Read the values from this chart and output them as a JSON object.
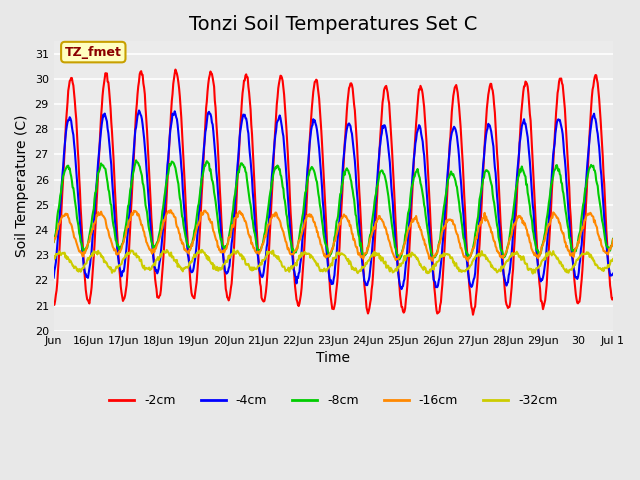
{
  "title": "Tonzi Soil Temperatures Set C",
  "xlabel": "Time",
  "ylabel": "Soil Temperature (C)",
  "ylim": [
    20.0,
    31.5
  ],
  "yticks": [
    20.0,
    21.0,
    22.0,
    23.0,
    24.0,
    25.0,
    26.0,
    27.0,
    28.0,
    29.0,
    30.0,
    31.0
  ],
  "bg_color": "#e8e8e8",
  "plot_bg": "#ebebeb",
  "annotation_text": "TZ_fmet",
  "annotation_bg": "#ffffc0",
  "annotation_border": "#c8a000",
  "series_names": [
    "-2cm",
    "-4cm",
    "-8cm",
    "-16cm",
    "-32cm"
  ],
  "series_colors": [
    "#ff0000",
    "#0000ff",
    "#00cc00",
    "#ff8800",
    "#cccc00"
  ],
  "series_lw": [
    1.5,
    1.5,
    1.5,
    1.5,
    1.5
  ],
  "series_amp": [
    4.5,
    3.2,
    1.7,
    0.8,
    0.35
  ],
  "series_phase": [
    0.0,
    0.3,
    0.7,
    1.1,
    1.8
  ],
  "series_mean": [
    25.5,
    25.2,
    24.8,
    23.8,
    22.75
  ],
  "series_amp2": [
    0.3,
    0.3,
    0.2,
    0.15,
    0.05
  ],
  "series_freq2": [
    0.07,
    0.07,
    0.07,
    0.07,
    0.07
  ],
  "n_days": 16,
  "samples_per_day": 48,
  "x_tick_labels": [
    "Jun",
    "16Jun",
    "17Jun",
    "18Jun",
    "19Jun",
    "20Jun",
    "21Jun",
    "22Jun",
    "23Jun",
    "24Jun",
    "25Jun",
    "26Jun",
    "27Jun",
    "28Jun",
    "29Jun",
    "30",
    "Jul 1"
  ],
  "title_fontsize": 14,
  "label_fontsize": 10,
  "tick_fontsize": 8
}
